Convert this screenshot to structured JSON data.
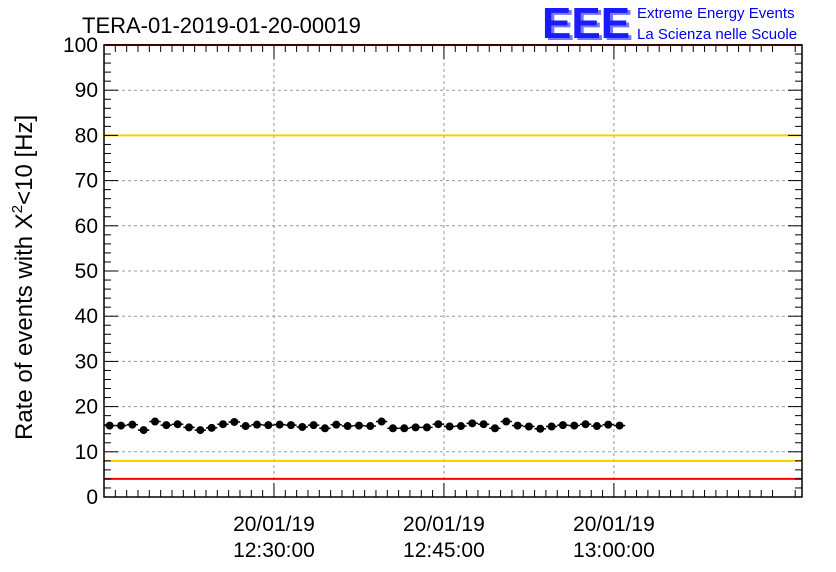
{
  "chart_data": {
    "type": "scatter",
    "title": "TERA-01-2019-01-20-00019",
    "ylabel": "Rate of events with X",
    "ylabel_sup": "2",
    "ylabel_tail": "<10 [Hz]",
    "ylim": [
      0,
      100
    ],
    "y_ticks": [
      "0",
      "10",
      "20",
      "30",
      "40",
      "50",
      "60",
      "70",
      "80",
      "90",
      "100"
    ],
    "xlim": [
      0,
      61.6
    ],
    "x_ticks": [
      {
        "x": 15,
        "date": "20/01/19",
        "time": "12:30:00"
      },
      {
        "x": 30,
        "date": "20/01/19",
        "time": "12:45:00"
      },
      {
        "x": 45,
        "date": "20/01/19",
        "time": "13:00:00"
      }
    ],
    "grid": true,
    "reference_lines": [
      {
        "y": 100,
        "color": "#ff0000"
      },
      {
        "y": 80,
        "color": "#ffcc00"
      },
      {
        "y": 8,
        "color": "#ffcc00"
      },
      {
        "y": 4,
        "color": "#ff0000"
      }
    ],
    "series": [
      {
        "color": "#000000",
        "x": [
          0.5,
          1.5,
          2.5,
          3.5,
          4.5,
          5.5,
          6.5,
          7.5,
          8.5,
          9.5,
          10.5,
          11.5,
          12.5,
          13.5,
          14.5,
          15.5,
          16.5,
          17.5,
          18.5,
          19.5,
          20.5,
          21.5,
          22.5,
          23.5,
          24.5,
          25.5,
          26.5,
          27.5,
          28.5,
          29.5,
          30.5,
          31.5,
          32.5,
          33.5,
          34.5,
          35.5,
          36.5,
          37.5,
          38.5,
          39.5,
          40.5,
          41.5,
          42.5,
          43.5,
          44.5,
          45.5
        ],
        "y": [
          15.8,
          15.8,
          16.0,
          14.8,
          16.7,
          15.9,
          16.1,
          15.4,
          14.8,
          15.3,
          16.1,
          16.6,
          15.7,
          16.0,
          15.9,
          16.0,
          15.9,
          15.5,
          15.9,
          15.2,
          16.0,
          15.7,
          15.8,
          15.7,
          16.7,
          15.2,
          15.2,
          15.4,
          15.4,
          16.1,
          15.6,
          15.7,
          16.3,
          16.1,
          15.2,
          16.7,
          15.8,
          15.6,
          15.1,
          15.6,
          15.9,
          15.8,
          16.1,
          15.7,
          16.0,
          15.8
        ],
        "err": 0.5
      }
    ]
  },
  "logo": {
    "letters": "EEE",
    "line1": "Extreme Energy Events",
    "line2": "La Scienza nelle Scuole",
    "color": "#1a1aff"
  }
}
